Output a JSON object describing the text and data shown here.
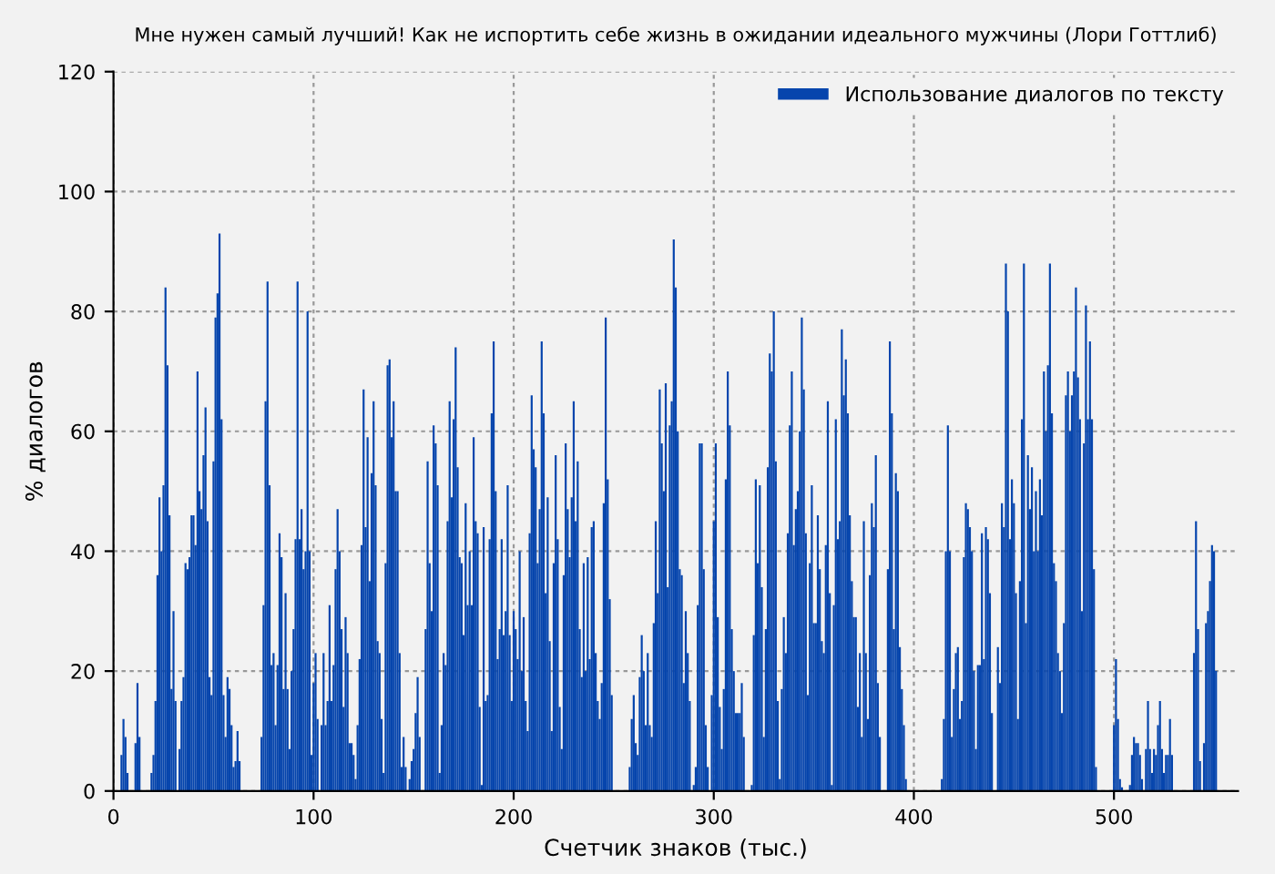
{
  "chart_data": {
    "type": "bar",
    "title": "Мне нужен самый лучший! Как не испортить себе жизнь в ожидании идеального мужчины (Лори Готтлиб)",
    "xlabel": "Счетчик знаков (тыс.)",
    "ylabel": "% диалогов",
    "xlim": [
      0,
      562
    ],
    "ylim": [
      0,
      120
    ],
    "xticks": [
      0,
      100,
      200,
      300,
      400,
      500
    ],
    "yticks": [
      0,
      20,
      40,
      60,
      80,
      100,
      120
    ],
    "grid": true,
    "legend": "top right",
    "series": [
      {
        "name": "Использование диалогов по тексту",
        "color": "#0645ad",
        "x": [
          4,
          5,
          6,
          7,
          11,
          12,
          13,
          19,
          20,
          21,
          22,
          23,
          24,
          25,
          26,
          27,
          28,
          29,
          30,
          31,
          33,
          34,
          35,
          36,
          37,
          38,
          39,
          40,
          41,
          42,
          43,
          44,
          45,
          46,
          47,
          48,
          49,
          50,
          51,
          52,
          53,
          54,
          55,
          56,
          57,
          58,
          59,
          60,
          61,
          62,
          63,
          74,
          75,
          76,
          77,
          78,
          79,
          80,
          81,
          82,
          83,
          84,
          85,
          86,
          87,
          88,
          89,
          90,
          91,
          92,
          93,
          94,
          95,
          96,
          97,
          98,
          99,
          100,
          101,
          102,
          104,
          105,
          106,
          107,
          108,
          109,
          110,
          111,
          112,
          113,
          114,
          115,
          116,
          117,
          118,
          119,
          120,
          121,
          122,
          123,
          124,
          125,
          126,
          127,
          128,
          129,
          130,
          131,
          132,
          133,
          134,
          135,
          136,
          137,
          138,
          139,
          140,
          141,
          142,
          143,
          144,
          145,
          146,
          148,
          149,
          150,
          151,
          152,
          153,
          156,
          157,
          158,
          159,
          160,
          161,
          162,
          163,
          164,
          165,
          166,
          167,
          168,
          169,
          170,
          171,
          172,
          173,
          174,
          175,
          176,
          177,
          178,
          179,
          180,
          181,
          182,
          183,
          184,
          185,
          186,
          187,
          188,
          189,
          190,
          191,
          192,
          193,
          194,
          195,
          196,
          197,
          198,
          199,
          200,
          201,
          202,
          203,
          204,
          205,
          206,
          207,
          208,
          209,
          210,
          211,
          212,
          213,
          214,
          215,
          216,
          217,
          218,
          219,
          220,
          221,
          222,
          223,
          224,
          225,
          226,
          227,
          228,
          229,
          230,
          231,
          232,
          233,
          234,
          235,
          236,
          237,
          238,
          239,
          240,
          241,
          242,
          243,
          244,
          245,
          246,
          247,
          248,
          249,
          258,
          259,
          260,
          261,
          262,
          263,
          264,
          265,
          266,
          267,
          268,
          269,
          270,
          271,
          272,
          273,
          274,
          275,
          276,
          277,
          278,
          279,
          280,
          281,
          282,
          283,
          284,
          285,
          286,
          287,
          288,
          290,
          291,
          292,
          293,
          294,
          295,
          296,
          297,
          299,
          300,
          301,
          302,
          303,
          304,
          305,
          306,
          307,
          308,
          309,
          310,
          311,
          312,
          313,
          314,
          315,
          319,
          320,
          321,
          322,
          323,
          324,
          325,
          326,
          327,
          328,
          329,
          330,
          331,
          332,
          333,
          334,
          335,
          336,
          337,
          338,
          339,
          340,
          341,
          342,
          343,
          344,
          345,
          346,
          347,
          348,
          349,
          350,
          351,
          352,
          353,
          354,
          355,
          356,
          357,
          358,
          359,
          360,
          361,
          362,
          363,
          364,
          365,
          366,
          367,
          368,
          369,
          370,
          371,
          372,
          373,
          374,
          375,
          376,
          377,
          378,
          379,
          380,
          381,
          382,
          383,
          387,
          388,
          389,
          390,
          391,
          392,
          393,
          394,
          395,
          396,
          414,
          415,
          416,
          417,
          418,
          419,
          420,
          421,
          422,
          423,
          424,
          425,
          426,
          427,
          428,
          429,
          430,
          431,
          432,
          433,
          434,
          435,
          436,
          437,
          438,
          439,
          442,
          443,
          444,
          445,
          446,
          447,
          448,
          449,
          450,
          451,
          452,
          453,
          454,
          455,
          456,
          457,
          458,
          459,
          460,
          461,
          462,
          463,
          464,
          465,
          466,
          467,
          468,
          469,
          470,
          471,
          472,
          473,
          474,
          475,
          476,
          477,
          478,
          479,
          480,
          481,
          482,
          483,
          484,
          485,
          486,
          487,
          488,
          489,
          490,
          491,
          500,
          501,
          502,
          503,
          504,
          508,
          509,
          510,
          511,
          512,
          513,
          514,
          516,
          517,
          518,
          519,
          520,
          521,
          522,
          523,
          524,
          525,
          526,
          527,
          528,
          529,
          540,
          541,
          542,
          543,
          545,
          546,
          547,
          548,
          549,
          550,
          551
        ],
        "values": [
          6,
          12,
          9,
          3,
          8,
          18,
          9,
          3,
          6,
          15,
          36,
          49,
          40,
          51,
          84,
          71,
          46,
          17,
          30,
          15,
          7,
          15,
          19,
          38,
          37,
          39,
          46,
          46,
          41,
          70,
          50,
          47,
          56,
          64,
          45,
          19,
          16,
          55,
          79,
          83,
          93,
          62,
          16,
          9,
          19,
          17,
          11,
          4,
          5,
          10,
          5,
          9,
          31,
          65,
          85,
          51,
          21,
          23,
          11,
          21,
          43,
          39,
          17,
          33,
          17,
          7,
          20,
          27,
          42,
          85,
          42,
          47,
          37,
          40,
          80,
          40,
          6,
          18,
          23,
          12,
          11,
          23,
          11,
          15,
          31,
          15,
          21,
          37,
          47,
          40,
          27,
          14,
          29,
          23,
          8,
          8,
          6,
          2,
          11,
          22,
          41,
          67,
          44,
          59,
          35,
          53,
          65,
          51,
          25,
          23,
          12,
          3,
          38,
          71,
          72,
          59,
          65,
          50,
          50,
          23,
          4,
          9,
          4,
          2,
          5,
          7,
          13,
          19,
          9,
          27,
          55,
          38,
          30,
          61,
          58,
          51,
          3,
          11,
          23,
          21,
          45,
          65,
          49,
          62,
          74,
          54,
          39,
          38,
          26,
          48,
          31,
          40,
          31,
          59,
          45,
          43,
          14,
          1,
          44,
          15,
          16,
          42,
          63,
          75,
          50,
          22,
          27,
          42,
          26,
          30,
          51,
          26,
          15,
          30,
          27,
          22,
          40,
          20,
          29,
          15,
          10,
          43,
          66,
          57,
          54,
          38,
          47,
          75,
          63,
          33,
          49,
          25,
          10,
          38,
          56,
          42,
          14,
          7,
          36,
          58,
          47,
          39,
          49,
          65,
          45,
          55,
          27,
          19,
          38,
          20,
          39,
          22,
          44,
          45,
          23,
          15,
          12,
          18,
          48,
          79,
          52,
          32,
          16,
          4,
          12,
          16,
          8,
          6,
          19,
          26,
          20,
          11,
          23,
          11,
          9,
          28,
          45,
          33,
          67,
          58,
          50,
          68,
          34,
          61,
          65,
          92,
          84,
          60,
          37,
          36,
          18,
          30,
          23,
          15,
          1,
          4,
          31,
          58,
          58,
          37,
          11,
          4,
          16,
          45,
          58,
          29,
          14,
          7,
          17,
          52,
          70,
          61,
          27,
          20,
          13,
          13,
          13,
          18,
          9,
          1,
          26,
          52,
          38,
          51,
          34,
          9,
          27,
          54,
          73,
          70,
          80,
          55,
          15,
          2,
          17,
          29,
          23,
          43,
          61,
          70,
          41,
          47,
          50,
          60,
          79,
          67,
          43,
          16,
          38,
          51,
          28,
          28,
          46,
          37,
          25,
          23,
          41,
          65,
          33,
          1,
          31,
          62,
          42,
          45,
          77,
          66,
          72,
          63,
          46,
          35,
          29,
          29,
          14,
          23,
          9,
          45,
          23,
          12,
          36,
          48,
          44,
          56,
          18,
          9,
          37,
          75,
          63,
          27,
          53,
          50,
          24,
          17,
          11,
          2,
          2,
          12,
          40,
          61,
          40,
          9,
          17,
          23,
          24,
          12,
          15,
          39,
          48,
          47,
          44,
          40,
          20,
          7,
          21,
          21,
          43,
          22,
          44,
          42,
          33,
          13,
          24,
          18,
          48,
          44,
          88,
          80,
          42,
          52,
          48,
          33,
          12,
          35,
          62,
          88,
          28,
          56,
          47,
          54,
          40,
          50,
          40,
          52,
          46,
          70,
          60,
          71,
          88,
          63,
          38,
          35,
          23,
          20,
          13,
          28,
          66,
          70,
          60,
          66,
          70,
          84,
          69,
          62,
          30,
          58,
          81,
          62,
          75,
          62,
          37,
          4,
          11,
          22,
          12,
          2,
          0.6,
          1,
          6,
          9,
          8,
          8,
          6,
          2,
          7,
          15,
          7,
          3,
          7,
          6,
          11,
          15,
          7,
          3,
          6,
          6,
          12,
          6,
          23,
          45,
          27,
          5,
          8,
          28,
          30,
          35,
          41,
          40,
          20
        ]
      }
    ]
  }
}
